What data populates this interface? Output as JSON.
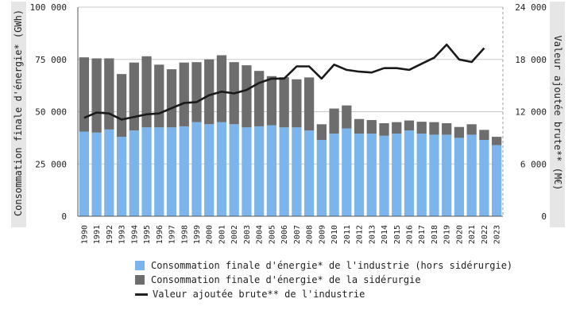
{
  "chart_data": {
    "type": "bar",
    "categories": [
      "1990",
      "1991",
      "1992",
      "1993",
      "1994",
      "1995",
      "1996",
      "1997",
      "1998",
      "1999",
      "2000",
      "2001",
      "2002",
      "2003",
      "2004",
      "2005",
      "2006",
      "2007",
      "2008",
      "2009",
      "2010",
      "2011",
      "2012",
      "2013",
      "2014",
      "2015",
      "2016",
      "2017",
      "2018",
      "2019",
      "2020",
      "2021",
      "2022",
      "2023"
    ],
    "stacked": true,
    "series": [
      {
        "name": "Consommation finale d'énergie* de l'industrie (hors sidérurgie)",
        "axis": "left",
        "color": "#7cb5ec",
        "values": [
          40500,
          40000,
          41500,
          38000,
          41000,
          42500,
          42500,
          42500,
          43000,
          45000,
          44000,
          45000,
          44000,
          42500,
          43000,
          43500,
          42500,
          42500,
          41000,
          36500,
          39500,
          42000,
          39500,
          39500,
          38500,
          39500,
          41000,
          39500,
          39000,
          39000,
          37500,
          39000,
          36500,
          34000
        ]
      },
      {
        "name": "Consommation finale d'énergie* de la sidérurgie",
        "axis": "left",
        "color": "#6d6d6d",
        "values": [
          35500,
          35500,
          34000,
          30000,
          32500,
          34000,
          30000,
          27800,
          30500,
          28700,
          31000,
          32000,
          29700,
          29700,
          26500,
          23500,
          24000,
          23000,
          25400,
          7500,
          12000,
          11000,
          7000,
          6500,
          6000,
          5500,
          4800,
          5700,
          6000,
          5500,
          5200,
          5000,
          4800,
          4000
        ]
      },
      {
        "name": "Valeur ajoutée brute** de l'industrie",
        "axis": "right",
        "type": "line",
        "color": "#1a1a1a",
        "values": [
          11300,
          11900,
          11800,
          11100,
          11400,
          11700,
          11800,
          12400,
          13000,
          13100,
          13900,
          14300,
          14100,
          14500,
          15300,
          15800,
          15800,
          17200,
          17200,
          15800,
          17400,
          16800,
          16600,
          16500,
          17000,
          17000,
          16800,
          17500,
          18200,
          19700,
          18000,
          17700,
          19300,
          null
        ]
      }
    ],
    "y_left": {
      "label": "Consommation finale d'énergie* (GWh)",
      "ylim": [
        0,
        100000
      ],
      "ticks": [
        "0",
        "25 000",
        "50 000",
        "75 000",
        "100 000"
      ],
      "tick_values": [
        0,
        25000,
        50000,
        75000,
        100000
      ]
    },
    "y_right": {
      "label": "Valeur ajoutée brute** (M€)",
      "ylim": [
        0,
        24000
      ],
      "ticks": [
        "0",
        "6 000",
        "12 000",
        "18 000",
        "24 000"
      ],
      "tick_values": [
        0,
        6000,
        12000,
        18000,
        24000
      ]
    },
    "grid": true,
    "legend_position": "bottom"
  },
  "legend": [
    {
      "label": "Consommation finale d'énergie* de l'industrie (hors sidérurgie)",
      "color": "#7cb5ec",
      "kind": "box"
    },
    {
      "label": "Consommation finale d'énergie* de la sidérurgie",
      "color": "#6d6d6d",
      "kind": "box"
    },
    {
      "label": "Valeur ajoutée brute** de l'industrie",
      "color": "#1a1a1a",
      "kind": "line"
    }
  ]
}
